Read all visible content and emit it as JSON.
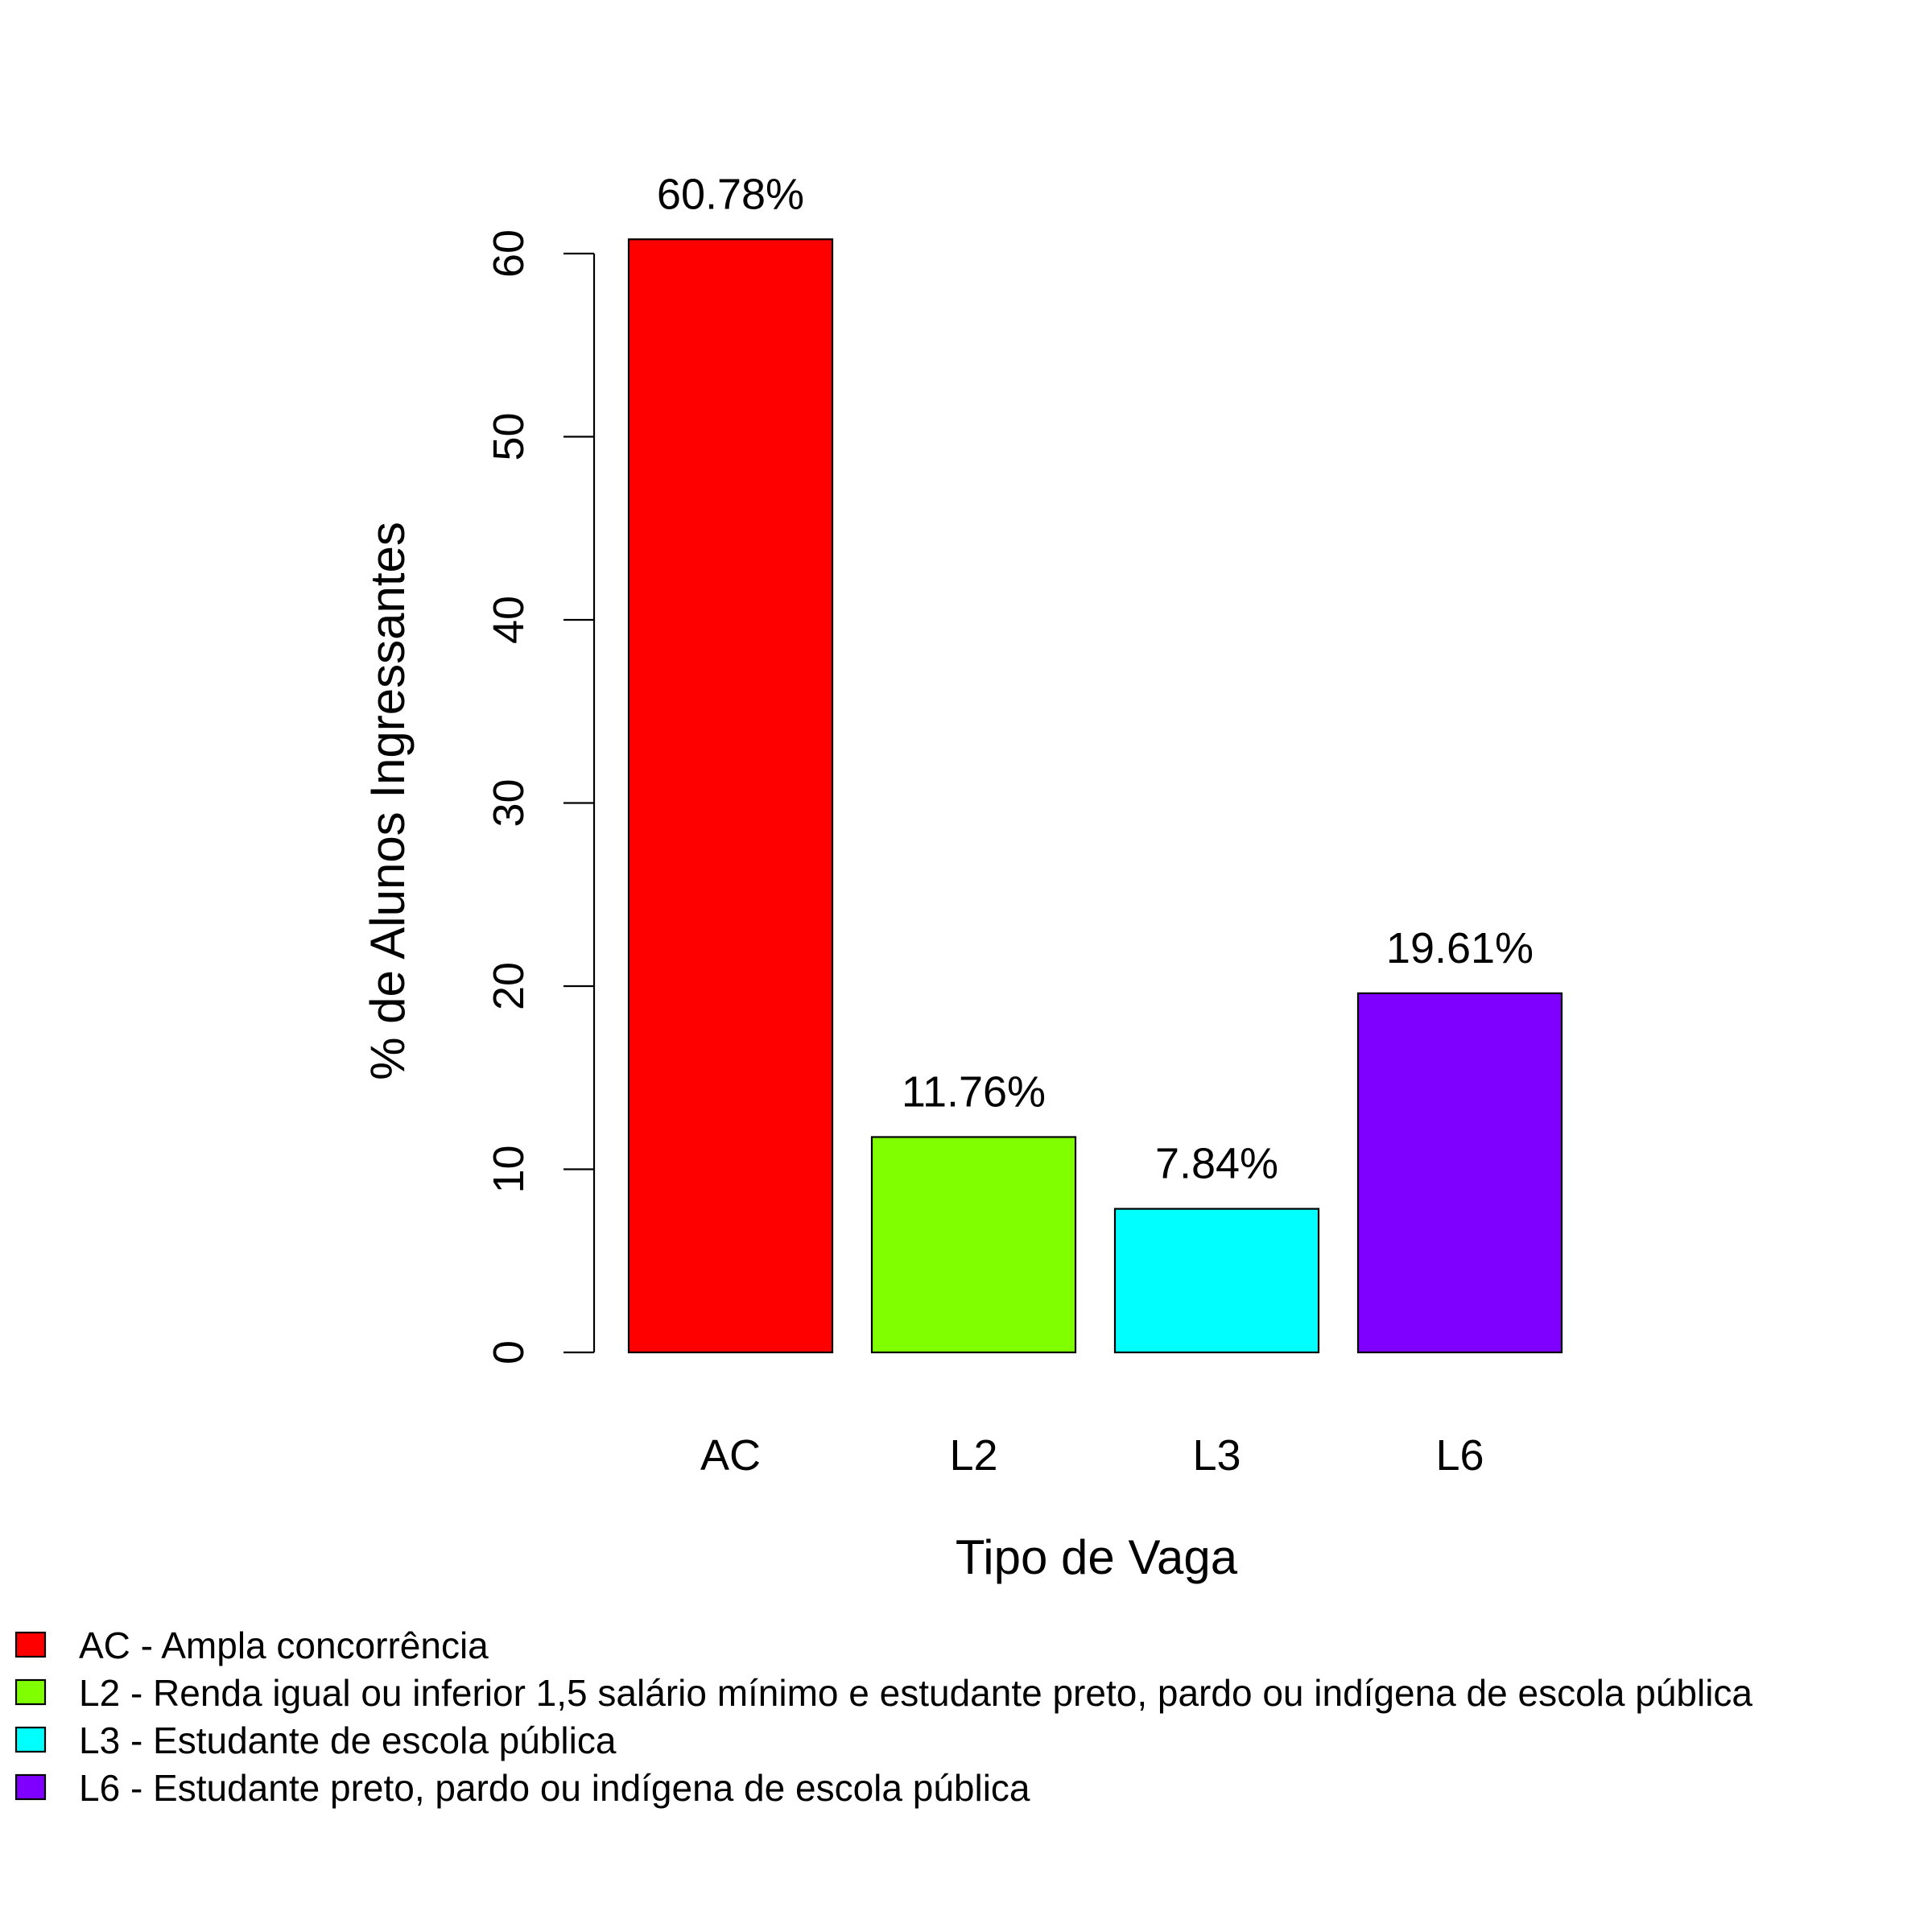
{
  "chart_data": {
    "type": "bar",
    "categories": [
      "AC",
      "L2",
      "L3",
      "L6"
    ],
    "values": [
      60.78,
      11.76,
      7.84,
      19.61
    ],
    "data_labels": [
      "60.78%",
      "11.76%",
      "7.84%",
      "19.61%"
    ],
    "colors": [
      "#FF0000",
      "#80FF00",
      "#00FFFF",
      "#8000FF"
    ],
    "xlabel": "Tipo de Vaga",
    "ylabel": "% de Alunos Ingressantes",
    "ylim": [
      0,
      60
    ],
    "yticks": [
      "0",
      "10",
      "20",
      "30",
      "40",
      "50",
      "60"
    ],
    "grid": false,
    "legend_position": "bottom-left",
    "legend": [
      {
        "label": "AC - Ampla concorrência",
        "color": "#FF0000"
      },
      {
        "label": "L2 - Renda igual ou inferior 1,5 salário mínimo e estudante preto, pardo ou indígena de escola pública",
        "color": "#80FF00"
      },
      {
        "label": "L3 - Estudante de escola pública",
        "color": "#00FFFF"
      },
      {
        "label": "L6 - Estudante preto, pardo ou indígena de escola pública",
        "color": "#8000FF"
      }
    ]
  }
}
